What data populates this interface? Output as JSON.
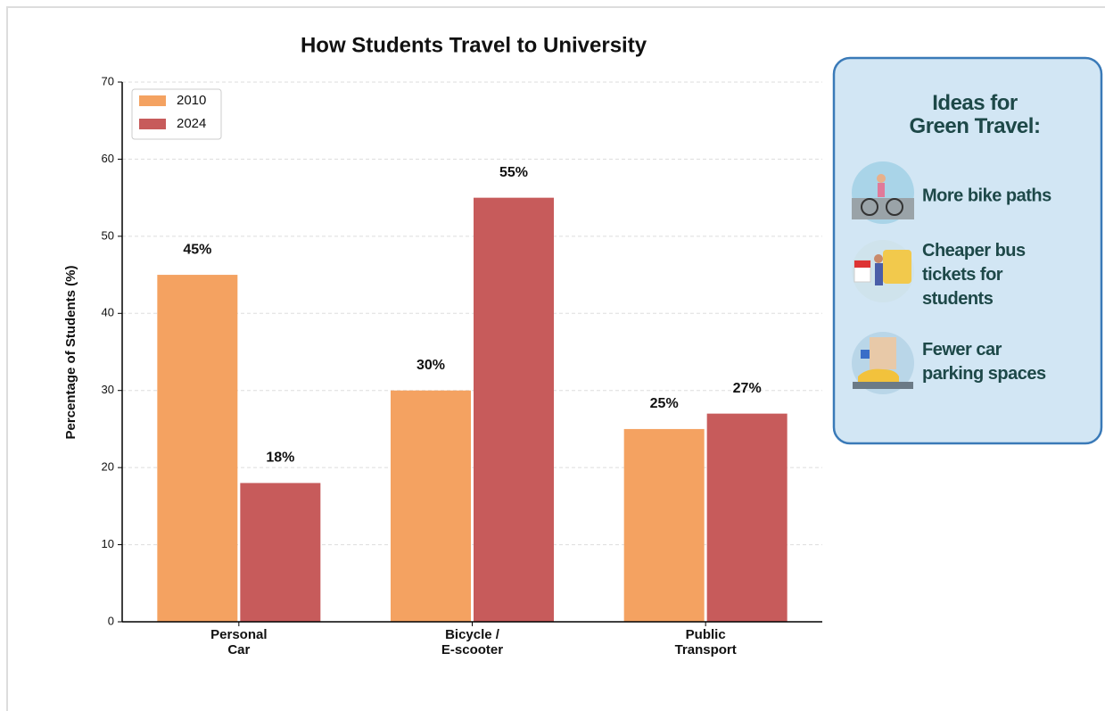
{
  "chart_data": {
    "type": "bar",
    "title": "How Students Travel to University",
    "ylabel": "Percentage of Students (%)",
    "categories": [
      "Personal\nCar",
      "Bicycle /\nE-scooter",
      "Public\nTransport"
    ],
    "series": [
      {
        "name": "2010",
        "color": "#f4a261",
        "values": [
          45,
          30,
          25
        ],
        "value_labels": [
          "45%",
          "30%",
          "25%"
        ]
      },
      {
        "name": "2024",
        "color": "#c75b5b",
        "values": [
          18,
          55,
          27
        ],
        "value_labels": [
          "18%",
          "55%",
          "27%"
        ]
      }
    ],
    "ylim": [
      0,
      70
    ],
    "yticks": [
      0,
      10,
      20,
      30,
      40,
      50,
      60,
      70
    ],
    "grid": true,
    "legend": "upper left"
  },
  "panel": {
    "title": "Ideas for\nGreen Travel:",
    "items": [
      "More bike paths",
      "Cheaper bus\ntickets for\nstudents",
      "Fewer car\nparking spaces"
    ]
  }
}
